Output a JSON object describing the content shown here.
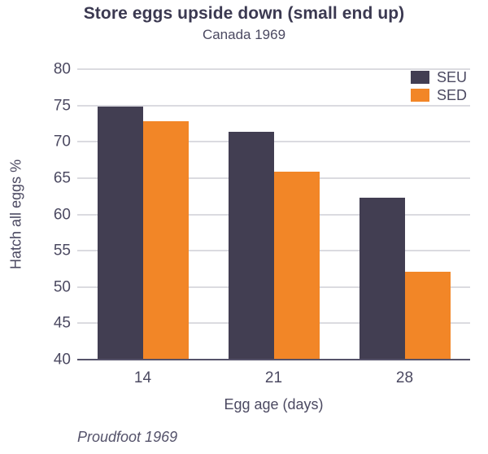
{
  "colors": {
    "title_text": "#3b3951",
    "body_text": "#4b4961",
    "caption_text": "#54526a",
    "gridline": "#dbdbe0",
    "axis_line": "#56536a",
    "background": "#ffffff",
    "seu_bar": "#423e52",
    "sed_bar": "#f28627"
  },
  "chart_data": {
    "type": "bar",
    "title": "Store eggs upside down (small end up)",
    "subtitle": "Canada 1969",
    "caption": "Proudfoot 1969",
    "xlabel": "Egg age (days)",
    "ylabel": "Hatch all eggs %",
    "categories": [
      "14",
      "21",
      "28"
    ],
    "series": [
      {
        "name": "SEU",
        "color": "#423e52",
        "values": [
          74.9,
          71.4,
          62.3
        ]
      },
      {
        "name": "SED",
        "color": "#f28627",
        "values": [
          72.8,
          65.9,
          52.1
        ]
      }
    ],
    "ylim": [
      40,
      80
    ],
    "ytick_step": 5,
    "yticks": [
      40,
      45,
      50,
      55,
      60,
      65,
      70,
      75,
      80
    ],
    "grid": true,
    "legend_position": "top-right"
  }
}
